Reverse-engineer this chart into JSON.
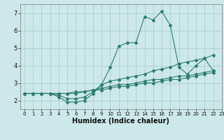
{
  "title": "",
  "xlabel": "Humidex (Indice chaleur)",
  "ylabel": "",
  "bg_color": "#cce8e8",
  "grid_color": "#aacfcf",
  "line_color": "#2e7d6e",
  "x": [
    0,
    1,
    2,
    3,
    4,
    5,
    6,
    7,
    8,
    9,
    10,
    11,
    12,
    13,
    14,
    15,
    16,
    17,
    18,
    19,
    20,
    21,
    22,
    23
  ],
  "series1": [
    2.4,
    2.4,
    2.4,
    2.4,
    2.2,
    1.9,
    1.9,
    2.0,
    2.4,
    2.9,
    3.9,
    5.1,
    5.3,
    5.3,
    6.8,
    6.6,
    7.1,
    6.3,
    3.9,
    3.5,
    4.0,
    4.4,
    3.7,
    null
  ],
  "series2": [
    2.4,
    2.4,
    2.4,
    2.4,
    2.3,
    2.1,
    2.1,
    2.2,
    2.5,
    2.9,
    3.1,
    3.2,
    3.3,
    3.4,
    3.5,
    3.7,
    3.8,
    3.9,
    4.1,
    4.2,
    4.3,
    4.4,
    4.6,
    null
  ],
  "series3": [
    2.4,
    2.4,
    2.4,
    2.4,
    2.4,
    2.4,
    2.5,
    2.5,
    2.6,
    2.7,
    2.8,
    2.9,
    2.9,
    3.0,
    3.1,
    3.2,
    3.2,
    3.3,
    3.4,
    3.4,
    3.5,
    3.6,
    3.7,
    null
  ],
  "series4": [
    2.4,
    2.4,
    2.4,
    2.4,
    2.4,
    2.4,
    2.4,
    2.5,
    2.6,
    2.6,
    2.7,
    2.8,
    2.8,
    2.9,
    3.0,
    3.0,
    3.1,
    3.2,
    3.2,
    3.3,
    3.4,
    3.5,
    3.6,
    null
  ],
  "xlim": [
    -0.5,
    23
  ],
  "ylim": [
    1.5,
    7.5
  ],
  "yticks": [
    2,
    3,
    4,
    5,
    6,
    7
  ],
  "xticks": [
    0,
    1,
    2,
    3,
    4,
    5,
    6,
    7,
    8,
    9,
    10,
    11,
    12,
    13,
    14,
    15,
    16,
    17,
    18,
    19,
    20,
    21,
    22,
    23
  ],
  "figsize": [
    3.2,
    2.0
  ],
  "dpi": 100
}
